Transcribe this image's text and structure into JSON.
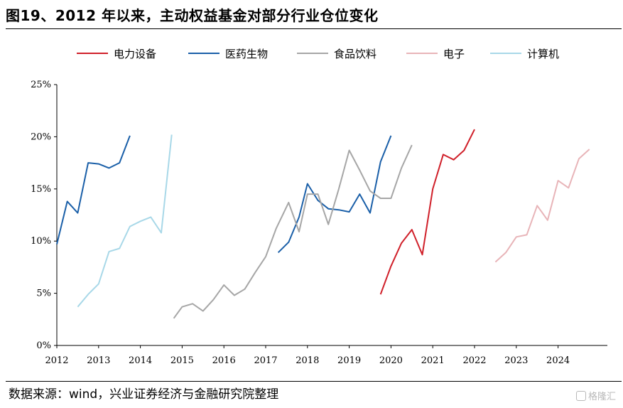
{
  "title": "图19、2012 年以来，主动权益基金对部分行业仓位变化",
  "source": "数据来源：wind，兴业证券经济与金融研究院整理",
  "watermark": "格隆汇",
  "chart_data": {
    "type": "line",
    "title": "图19、2012 年以来，主动权益基金对部分行业仓位变化",
    "xlabel": "",
    "ylabel": "",
    "xlim": [
      2012,
      2024.9
    ],
    "ylim": [
      0,
      25
    ],
    "yticks": [
      0,
      5,
      10,
      15,
      20,
      25
    ],
    "ytick_labels": [
      "0%",
      "5%",
      "10%",
      "15%",
      "20%",
      "25%"
    ],
    "xticks": [
      2012,
      2013,
      2014,
      2015,
      2016,
      2017,
      2018,
      2019,
      2020,
      2021,
      2022,
      2023,
      2024
    ],
    "xtick_labels": [
      "2012",
      "2013",
      "2014",
      "2015",
      "2016",
      "2017",
      "2018",
      "2019",
      "2020",
      "2021",
      "2022",
      "2023",
      "2024"
    ],
    "grid": false,
    "legend_position": "top",
    "series": [
      {
        "name": "电力设备",
        "color": "#d0202a",
        "x": [
          2019.75,
          2020.0,
          2020.25,
          2020.5,
          2020.75,
          2021.0,
          2021.25,
          2021.5,
          2021.75,
          2022.0
        ],
        "y": [
          4.9,
          7.6,
          9.8,
          11.1,
          8.7,
          15.0,
          18.3,
          17.8,
          18.7,
          20.7
        ]
      },
      {
        "name": "医药生物",
        "color": "#1a5fa8",
        "x": [
          2012.0,
          2012.25,
          2012.5,
          2012.75,
          2013.0,
          2013.25,
          2013.5,
          2013.75,
          2017.3,
          2017.55,
          2017.8,
          2018.0,
          2018.25,
          2018.5,
          2018.75,
          2019.0,
          2019.25,
          2019.5,
          2019.75,
          2020.0
        ],
        "y": [
          9.7,
          13.8,
          12.7,
          17.5,
          17.4,
          17.0,
          17.5,
          20.1,
          8.9,
          9.9,
          12.3,
          15.5,
          13.9,
          13.1,
          13.0,
          12.8,
          14.5,
          12.7,
          17.6,
          20.1
        ]
      },
      {
        "name": "食品饮料",
        "color": "#a6a6a6",
        "x": [
          2014.8,
          2015.0,
          2015.25,
          2015.5,
          2015.75,
          2016.0,
          2016.25,
          2016.5,
          2016.75,
          2017.0,
          2017.25,
          2017.55,
          2017.8,
          2018.0,
          2018.25,
          2018.5,
          2018.75,
          2019.0,
          2019.25,
          2019.5,
          2019.75,
          2020.0,
          2020.25,
          2020.5
        ],
        "y": [
          2.6,
          3.7,
          4.0,
          3.3,
          4.4,
          5.8,
          4.8,
          5.4,
          7.0,
          8.5,
          11.2,
          13.7,
          10.9,
          14.5,
          14.5,
          11.6,
          15.0,
          18.7,
          16.8,
          14.8,
          14.1,
          14.1,
          17.0,
          19.2
        ]
      },
      {
        "name": "电子",
        "color": "#e8b4b8",
        "x": [
          2022.5,
          2022.75,
          2023.0,
          2023.25,
          2023.5,
          2023.75,
          2024.0,
          2024.25,
          2024.5,
          2024.75
        ],
        "y": [
          8.0,
          8.9,
          10.4,
          10.6,
          13.4,
          12.0,
          15.8,
          15.1,
          17.9,
          18.8
        ]
      },
      {
        "name": "计算机",
        "color": "#a8d8e8",
        "x": [
          2012.5,
          2012.75,
          2013.0,
          2013.25,
          2013.5,
          2013.75,
          2014.0,
          2014.25,
          2014.5,
          2014.75
        ],
        "y": [
          3.7,
          4.9,
          5.9,
          9.0,
          9.3,
          11.4,
          11.9,
          12.3,
          10.8,
          20.2
        ]
      }
    ]
  }
}
